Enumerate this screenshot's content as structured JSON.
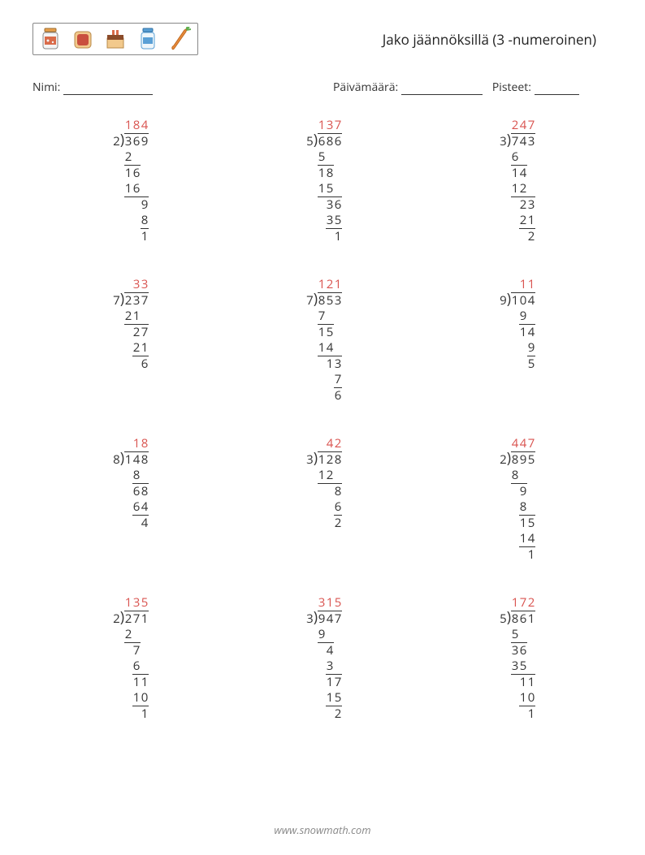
{
  "title": "Jako jäännöksillä (3 -numeroinen)",
  "labels": {
    "name": "Nimi:",
    "date": "Päivämäärä:",
    "score": "Pisteet:"
  },
  "footer": "www.snowmath.com",
  "colors": {
    "quotient": "#d9534f",
    "text": "#333333",
    "rule": "#333333",
    "background": "#ffffff"
  },
  "font_size_pt": 11,
  "problems": [
    {
      "divisor": 2,
      "dividend": 369,
      "quotient": 184,
      "work": [
        {
          "digits": [
            "",
            "2",
            "",
            ""
          ],
          "rule_cols": [
            1,
            2
          ]
        },
        {
          "digits": [
            "",
            "1",
            "6",
            ""
          ]
        },
        {
          "digits": [
            "",
            "1",
            "6",
            ""
          ],
          "rule_cols": [
            1,
            2,
            3
          ]
        },
        {
          "digits": [
            "",
            "",
            "",
            "9"
          ]
        },
        {
          "digits": [
            "",
            "",
            "",
            "8"
          ],
          "rule_cols": [
            3
          ]
        },
        {
          "digits": [
            "",
            "",
            "",
            "1"
          ],
          "pre_rule_cols": [
            3
          ]
        }
      ]
    },
    {
      "divisor": 5,
      "dividend": 686,
      "quotient": 137,
      "work": [
        {
          "digits": [
            "",
            "5",
            "",
            ""
          ],
          "rule_cols": [
            1,
            2
          ]
        },
        {
          "digits": [
            "",
            "1",
            "8",
            ""
          ]
        },
        {
          "digits": [
            "",
            "1",
            "5",
            ""
          ],
          "rule_cols": [
            1,
            2,
            3
          ]
        },
        {
          "digits": [
            "",
            "",
            "3",
            "6"
          ]
        },
        {
          "digits": [
            "",
            "",
            "3",
            "5"
          ],
          "rule_cols": [
            2,
            3
          ]
        },
        {
          "digits": [
            "",
            "",
            "",
            "1"
          ],
          "pre_rule_cols": [
            3
          ]
        }
      ]
    },
    {
      "divisor": 3,
      "dividend": 743,
      "quotient": 247,
      "work": [
        {
          "digits": [
            "",
            "6",
            "",
            ""
          ],
          "rule_cols": [
            1,
            2
          ]
        },
        {
          "digits": [
            "",
            "1",
            "4",
            ""
          ]
        },
        {
          "digits": [
            "",
            "1",
            "2",
            ""
          ],
          "rule_cols": [
            1,
            2,
            3
          ]
        },
        {
          "digits": [
            "",
            "",
            "2",
            "3"
          ]
        },
        {
          "digits": [
            "",
            "",
            "2",
            "1"
          ],
          "rule_cols": [
            2,
            3
          ]
        },
        {
          "digits": [
            "",
            "",
            "",
            "2"
          ],
          "pre_rule_cols": [
            3
          ]
        }
      ]
    },
    {
      "divisor": 7,
      "dividend": 237,
      "quotient": 33,
      "work": [
        {
          "digits": [
            "",
            "2",
            "1",
            ""
          ],
          "rule_cols": [
            1,
            2,
            3
          ]
        },
        {
          "digits": [
            "",
            "",
            "2",
            "7"
          ]
        },
        {
          "digits": [
            "",
            "",
            "2",
            "1"
          ],
          "rule_cols": [
            2,
            3
          ]
        },
        {
          "digits": [
            "",
            "",
            "",
            "6"
          ],
          "pre_rule_cols": [
            3
          ]
        }
      ],
      "quotient_align": "right2"
    },
    {
      "divisor": 7,
      "dividend": 853,
      "quotient": 121,
      "work": [
        {
          "digits": [
            "",
            "7",
            "",
            ""
          ],
          "rule_cols": [
            1,
            2
          ]
        },
        {
          "digits": [
            "",
            "1",
            "5",
            ""
          ]
        },
        {
          "digits": [
            "",
            "1",
            "4",
            ""
          ],
          "rule_cols": [
            1,
            2,
            3
          ]
        },
        {
          "digits": [
            "",
            "",
            "1",
            "3"
          ]
        },
        {
          "digits": [
            "",
            "",
            "",
            "7"
          ],
          "rule_cols": [
            3
          ]
        },
        {
          "digits": [
            "",
            "",
            "",
            "6"
          ],
          "pre_rule_cols": [
            3
          ]
        }
      ]
    },
    {
      "divisor": 9,
      "dividend": 104,
      "quotient": 11,
      "work": [
        {
          "digits": [
            "",
            "",
            "9",
            ""
          ],
          "rule_cols": [
            2,
            3
          ]
        },
        {
          "digits": [
            "",
            "",
            "1",
            "4"
          ]
        },
        {
          "digits": [
            "",
            "",
            "",
            "9"
          ],
          "rule_cols": [
            3
          ]
        },
        {
          "digits": [
            "",
            "",
            "",
            "5"
          ],
          "pre_rule_cols": [
            3
          ]
        }
      ],
      "quotient_align": "right2"
    },
    {
      "divisor": 8,
      "dividend": 148,
      "quotient": 18,
      "work": [
        {
          "digits": [
            "",
            "",
            "8",
            ""
          ],
          "rule_cols": [
            2,
            3
          ]
        },
        {
          "digits": [
            "",
            "",
            "6",
            "8"
          ]
        },
        {
          "digits": [
            "",
            "",
            "6",
            "4"
          ],
          "rule_cols": [
            2,
            3
          ]
        },
        {
          "digits": [
            "",
            "",
            "",
            "4"
          ],
          "pre_rule_cols": [
            3
          ]
        }
      ],
      "quotient_align": "right2"
    },
    {
      "divisor": 3,
      "dividend": 128,
      "quotient": 42,
      "work": [
        {
          "digits": [
            "",
            "1",
            "2",
            ""
          ],
          "rule_cols": [
            1,
            2,
            3
          ]
        },
        {
          "digits": [
            "",
            "",
            "",
            "8"
          ]
        },
        {
          "digits": [
            "",
            "",
            "",
            "6"
          ],
          "rule_cols": [
            3
          ]
        },
        {
          "digits": [
            "",
            "",
            "",
            "2"
          ],
          "pre_rule_cols": [
            3
          ]
        }
      ],
      "quotient_align": "right2"
    },
    {
      "divisor": 2,
      "dividend": 895,
      "quotient": 447,
      "work": [
        {
          "digits": [
            "",
            "8",
            "",
            ""
          ],
          "rule_cols": [
            1,
            2
          ]
        },
        {
          "digits": [
            "",
            "",
            "9",
            ""
          ]
        },
        {
          "digits": [
            "",
            "",
            "8",
            ""
          ],
          "rule_cols": [
            2,
            3
          ]
        },
        {
          "digits": [
            "",
            "",
            "1",
            "5"
          ]
        },
        {
          "digits": [
            "",
            "",
            "1",
            "4"
          ],
          "rule_cols": [
            2,
            3
          ]
        },
        {
          "digits": [
            "",
            "",
            "",
            "1"
          ],
          "pre_rule_cols": [
            3
          ]
        }
      ]
    },
    {
      "divisor": 2,
      "dividend": 271,
      "quotient": 135,
      "work": [
        {
          "digits": [
            "",
            "2",
            "",
            ""
          ],
          "rule_cols": [
            1,
            2
          ]
        },
        {
          "digits": [
            "",
            "",
            "7",
            ""
          ]
        },
        {
          "digits": [
            "",
            "",
            "6",
            ""
          ],
          "rule_cols": [
            2,
            3
          ]
        },
        {
          "digits": [
            "",
            "",
            "1",
            "1"
          ]
        },
        {
          "digits": [
            "",
            "",
            "1",
            "0"
          ],
          "rule_cols": [
            2,
            3
          ]
        },
        {
          "digits": [
            "",
            "",
            "",
            "1"
          ],
          "pre_rule_cols": [
            3
          ]
        }
      ]
    },
    {
      "divisor": 3,
      "dividend": 947,
      "quotient": 315,
      "work": [
        {
          "digits": [
            "",
            "9",
            "",
            ""
          ],
          "rule_cols": [
            1,
            2
          ]
        },
        {
          "digits": [
            "",
            "",
            "4",
            ""
          ]
        },
        {
          "digits": [
            "",
            "",
            "3",
            ""
          ],
          "rule_cols": [
            2,
            3
          ]
        },
        {
          "digits": [
            "",
            "",
            "1",
            "7"
          ]
        },
        {
          "digits": [
            "",
            "",
            "1",
            "5"
          ],
          "rule_cols": [
            2,
            3
          ]
        },
        {
          "digits": [
            "",
            "",
            "",
            "2"
          ],
          "pre_rule_cols": [
            3
          ]
        }
      ]
    },
    {
      "divisor": 5,
      "dividend": 861,
      "quotient": 172,
      "work": [
        {
          "digits": [
            "",
            "5",
            "",
            ""
          ],
          "rule_cols": [
            1,
            2
          ]
        },
        {
          "digits": [
            "",
            "3",
            "6",
            ""
          ]
        },
        {
          "digits": [
            "",
            "3",
            "5",
            ""
          ],
          "rule_cols": [
            1,
            2,
            3
          ]
        },
        {
          "digits": [
            "",
            "",
            "1",
            "1"
          ]
        },
        {
          "digits": [
            "",
            "",
            "1",
            "0"
          ],
          "rule_cols": [
            2,
            3
          ]
        },
        {
          "digits": [
            "",
            "",
            "",
            "1"
          ],
          "pre_rule_cols": [
            3
          ]
        }
      ]
    }
  ]
}
